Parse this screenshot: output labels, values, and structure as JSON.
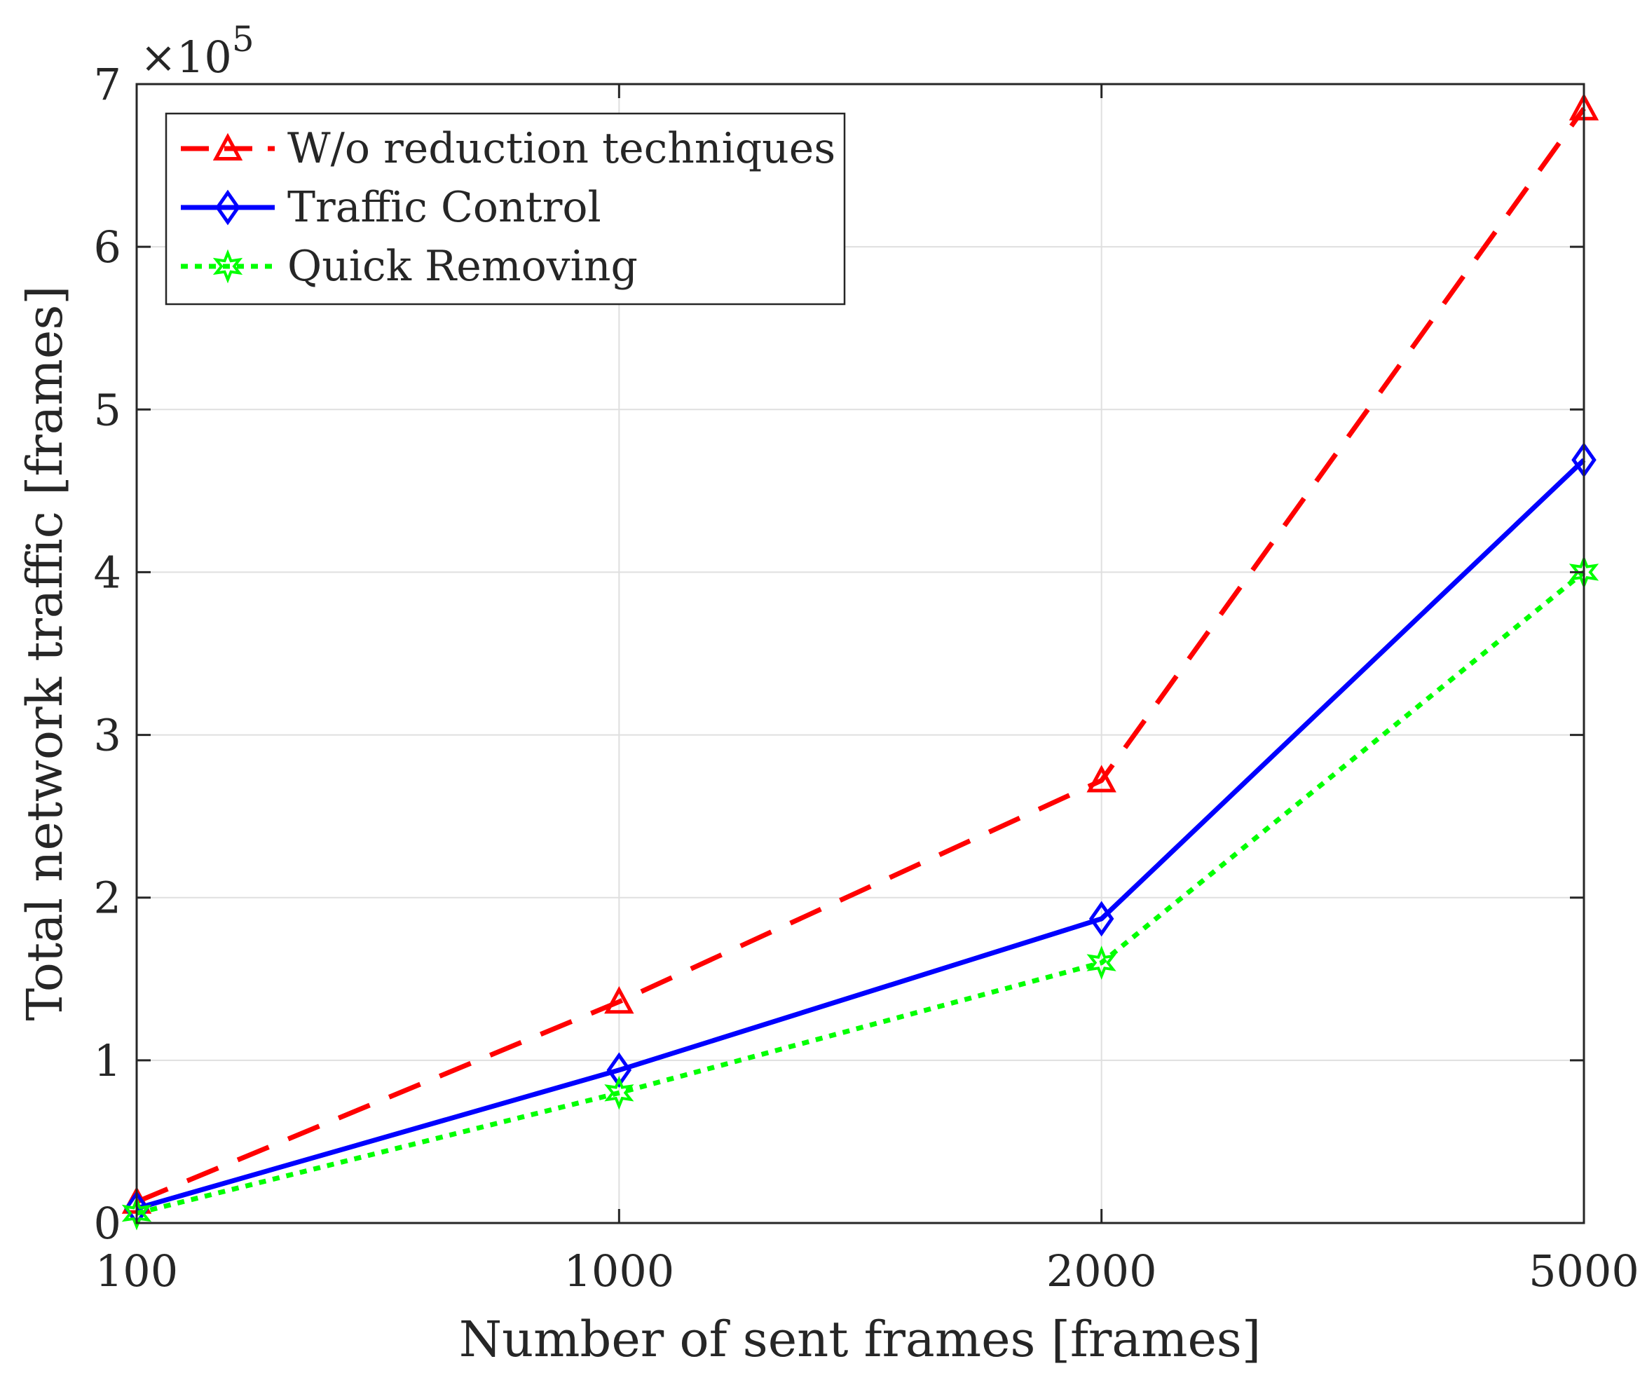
{
  "chart_data": {
    "type": "line",
    "title": "",
    "xlabel": "Number of sent frames [frames]",
    "ylabel": "Total network traffic [frames]",
    "x_categories": [
      "100",
      "1000",
      "2000",
      "5000"
    ],
    "y_exponent_prefix": "×10",
    "y_exponent_power": "5",
    "ylim": [
      0,
      7
    ],
    "yticks": [
      0,
      1,
      2,
      3,
      4,
      5,
      6,
      7
    ],
    "ytick_labels": [
      "0",
      "1",
      "2",
      "3",
      "4",
      "5",
      "6",
      "7"
    ],
    "grid": true,
    "legend_position": "top-left",
    "series": [
      {
        "name": "W/o reduction techniques",
        "color": "#ff0000",
        "line_style": "dashed",
        "marker": "triangle-up",
        "values": [
          0.13,
          1.36,
          2.72,
          6.85
        ]
      },
      {
        "name": "Traffic Control",
        "color": "#0000ff",
        "line_style": "solid",
        "marker": "diamond",
        "values": [
          0.09,
          0.94,
          1.87,
          4.69
        ]
      },
      {
        "name": "Quick Removing",
        "color": "#00ff00",
        "line_style": "dotted",
        "marker": "hexagram",
        "values": [
          0.06,
          0.8,
          1.6,
          4.0
        ]
      }
    ]
  }
}
